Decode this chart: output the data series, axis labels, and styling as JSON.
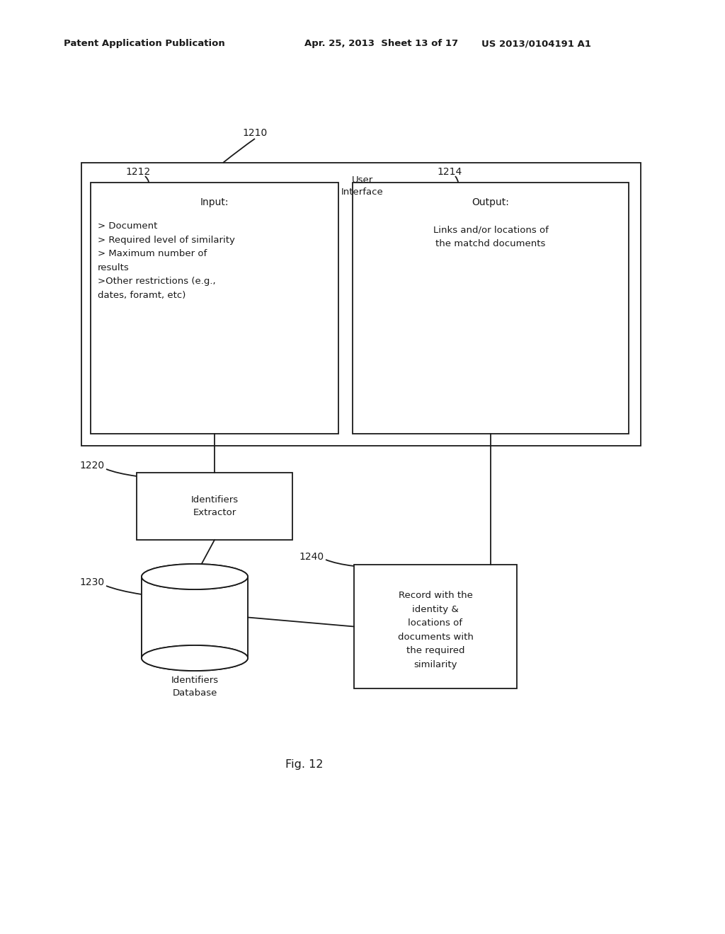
{
  "bg_color": "#ffffff",
  "header_left": "Patent Application Publication",
  "header_mid": "Apr. 25, 2013  Sheet 13 of 17",
  "header_right": "US 2013/0104191 A1",
  "fig_label": "Fig. 12",
  "label_1210": "1210",
  "label_1212": "1212",
  "label_1214": "1214",
  "label_1220": "1220",
  "label_1230": "1230",
  "label_1240": "1240",
  "ui_label": "User\nInterface",
  "input_title": "Input:",
  "input_text": "> Document\n> Required level of similarity\n> Maximum number of\nresults\n>Other restrictions (e.g.,\ndates, foramt, etc)",
  "output_title": "Output:",
  "output_text": "Links and/or locations of\nthe matchd documents",
  "extractor_text": "Identifiers\nExtractor",
  "db_text": "Identifiers\nDatabase",
  "record_text": "Record with the\nidentity &\nlocations of\ndocuments with\nthe required\nsimilarity",
  "line_color": "#1a1a1a",
  "text_color": "#1a1a1a",
  "font_size_header": 9.5,
  "font_size_label": 10,
  "font_size_main": 9.5
}
